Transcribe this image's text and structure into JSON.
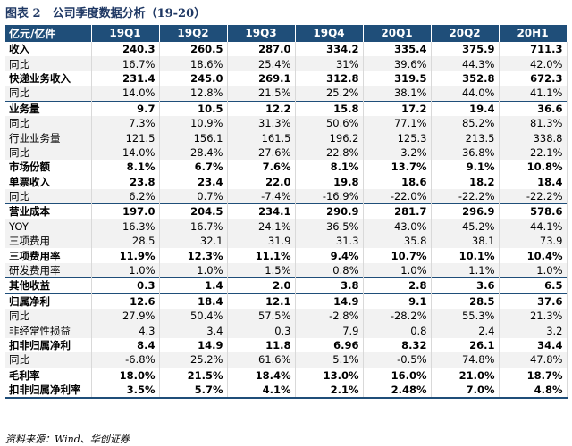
{
  "caption": "图表 2　公司季度数据分析（19-20）",
  "header": [
    "亿元/亿件",
    "19Q1",
    "19Q2",
    "19Q3",
    "19Q4",
    "20Q1",
    "20Q2",
    "20H1"
  ],
  "rows": [
    {
      "label": "收入",
      "values": [
        "240.3",
        "260.5",
        "287.0",
        "334.2",
        "335.4",
        "375.9",
        "711.3"
      ],
      "bold": true,
      "grp": true
    },
    {
      "label": "同比",
      "values": [
        "16.7%",
        "18.6%",
        "25.4%",
        "31%",
        "39.6%",
        "44.3%",
        "42.0%"
      ]
    },
    {
      "label": "快递业务收入",
      "values": [
        "231.4",
        "245.0",
        "269.1",
        "312.8",
        "319.5",
        "352.8",
        "672.3"
      ],
      "bold": true
    },
    {
      "label": "同比",
      "values": [
        "14.0%",
        "12.8%",
        "21.5%",
        "25.2%",
        "38.1%",
        "44.0%",
        "41.1%"
      ]
    },
    {
      "label": "业务量",
      "values": [
        "9.7",
        "10.5",
        "12.2",
        "15.8",
        "17.2",
        "19.4",
        "36.6"
      ],
      "bold": true,
      "grp": true
    },
    {
      "label": "同比",
      "values": [
        "7.3%",
        "10.9%",
        "31.3%",
        "50.6%",
        "77.1%",
        "85.2%",
        "81.3%"
      ]
    },
    {
      "label": "行业业务量",
      "values": [
        "121.5",
        "156.1",
        "161.5",
        "196.2",
        "125.3",
        "213.5",
        "338.8"
      ]
    },
    {
      "label": "同比",
      "values": [
        "14.0%",
        "28.4%",
        "27.6%",
        "22.8%",
        "3.2%",
        "36.8%",
        "22.1%"
      ]
    },
    {
      "label": "市场份额",
      "values": [
        "8.1%",
        "6.7%",
        "7.6%",
        "8.1%",
        "13.7%",
        "9.1%",
        "10.8%"
      ],
      "bold": true
    },
    {
      "label": "单票收入",
      "values": [
        "23.8",
        "23.4",
        "22.0",
        "19.8",
        "18.6",
        "18.2",
        "18.4"
      ],
      "bold": true
    },
    {
      "label": "同比",
      "values": [
        "6.2%",
        "0.7%",
        "-7.4%",
        "-16.9%",
        "-22.0%",
        "-22.2%",
        "-22.2%"
      ]
    },
    {
      "label": "营业成本",
      "values": [
        "197.0",
        "204.5",
        "234.1",
        "290.9",
        "281.7",
        "296.9",
        "578.6"
      ],
      "bold": true,
      "grp": true
    },
    {
      "label": "YOY",
      "values": [
        "16.3%",
        "16.7%",
        "24.1%",
        "36.5%",
        "43.0%",
        "45.2%",
        "44.1%"
      ]
    },
    {
      "label": "三项费用",
      "values": [
        "28.5",
        "32.1",
        "31.9",
        "31.3",
        "35.8",
        "38.1",
        "73.9"
      ]
    },
    {
      "label": "三项费用率",
      "values": [
        "11.9%",
        "12.3%",
        "11.1%",
        "9.4%",
        "10.7%",
        "10.1%",
        "10.4%"
      ],
      "bold": true
    },
    {
      "label": "研发费用率",
      "values": [
        "1.0%",
        "1.0%",
        "1.5%",
        "0.8%",
        "1.0%",
        "1.1%",
        "1.0%"
      ]
    },
    {
      "label": "其他收益",
      "values": [
        "0.3",
        "1.4",
        "2.0",
        "3.8",
        "2.8",
        "3.6",
        "6.5"
      ],
      "bold": true,
      "grp": true
    },
    {
      "label": "归属净利",
      "values": [
        "12.6",
        "18.4",
        "12.1",
        "14.9",
        "9.1",
        "28.5",
        "37.6"
      ],
      "bold": true,
      "grp": true
    },
    {
      "label": "同比",
      "values": [
        "27.9%",
        "50.4%",
        "57.5%",
        "-2.8%",
        "-28.2%",
        "55.3%",
        "21.3%"
      ]
    },
    {
      "label": "非经常性损益",
      "values": [
        "4.3",
        "3.4",
        "0.3",
        "7.9",
        "0.8",
        "2.4",
        "3.2"
      ]
    },
    {
      "label": "扣非归属净利",
      "values": [
        "8.4",
        "14.9",
        "11.8",
        "6.96",
        "8.32",
        "26.1",
        "34.4"
      ],
      "bold": true
    },
    {
      "label": "同比",
      "values": [
        "-6.8%",
        "25.2%",
        "61.6%",
        "5.1%",
        "-0.5%",
        "74.8%",
        "47.8%"
      ]
    },
    {
      "label": "毛利率",
      "values": [
        "18.0%",
        "21.5%",
        "18.4%",
        "13.0%",
        "16.0%",
        "21.0%",
        "18.7%"
      ],
      "bold": true,
      "grp": true
    },
    {
      "label": "扣非归属净利率",
      "values": [
        "3.5%",
        "5.7%",
        "4.1%",
        "2.1%",
        "2.48%",
        "7.0%",
        "4.8%"
      ],
      "bold": true,
      "last": true
    }
  ],
  "source": "资料来源：Wind、华创证券"
}
